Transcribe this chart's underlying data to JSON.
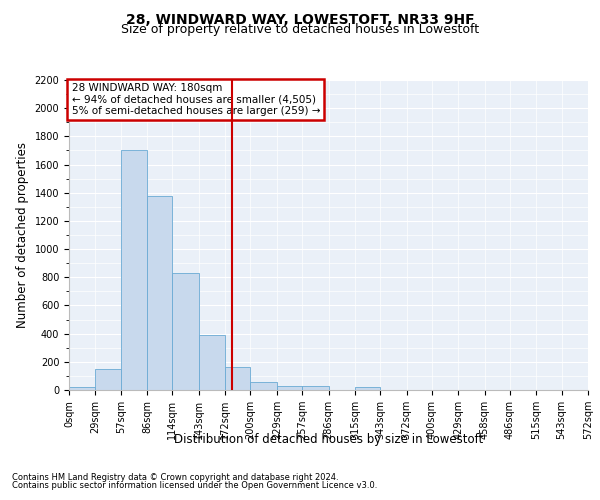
{
  "title1": "28, WINDWARD WAY, LOWESTOFT, NR33 9HF",
  "title2": "Size of property relative to detached houses in Lowestoft",
  "xlabel": "Distribution of detached houses by size in Lowestoft",
  "ylabel": "Number of detached properties",
  "footer1": "Contains HM Land Registry data © Crown copyright and database right 2024.",
  "footer2": "Contains public sector information licensed under the Open Government Licence v3.0.",
  "annotation_title": "28 WINDWARD WAY: 180sqm",
  "annotation_line1": "← 94% of detached houses are smaller (4,505)",
  "annotation_line2": "5% of semi-detached houses are larger (259) →",
  "property_size": 180,
  "bin_edges": [
    0,
    29,
    57,
    86,
    114,
    143,
    172,
    200,
    229,
    257,
    286,
    315,
    343,
    372,
    400,
    429,
    458,
    486,
    515,
    543,
    572
  ],
  "bar_heights": [
    20,
    150,
    1700,
    1380,
    830,
    390,
    160,
    60,
    30,
    30,
    0,
    20,
    0,
    0,
    0,
    0,
    0,
    0,
    0,
    0
  ],
  "bar_color": "#c8d9ed",
  "bar_edge_color": "#6aaad4",
  "vline_color": "#cc0000",
  "annotation_box_color": "#cc0000",
  "background_color": "#eaf0f8",
  "grid_color": "#ffffff",
  "ylim": [
    0,
    2200
  ],
  "yticks": [
    0,
    200,
    400,
    600,
    800,
    1000,
    1200,
    1400,
    1600,
    1800,
    2000,
    2200
  ],
  "title_fontsize": 10,
  "subtitle_fontsize": 9,
  "tick_fontsize": 7,
  "label_fontsize": 8.5,
  "footer_fontsize": 6,
  "annotation_fontsize": 7.5
}
